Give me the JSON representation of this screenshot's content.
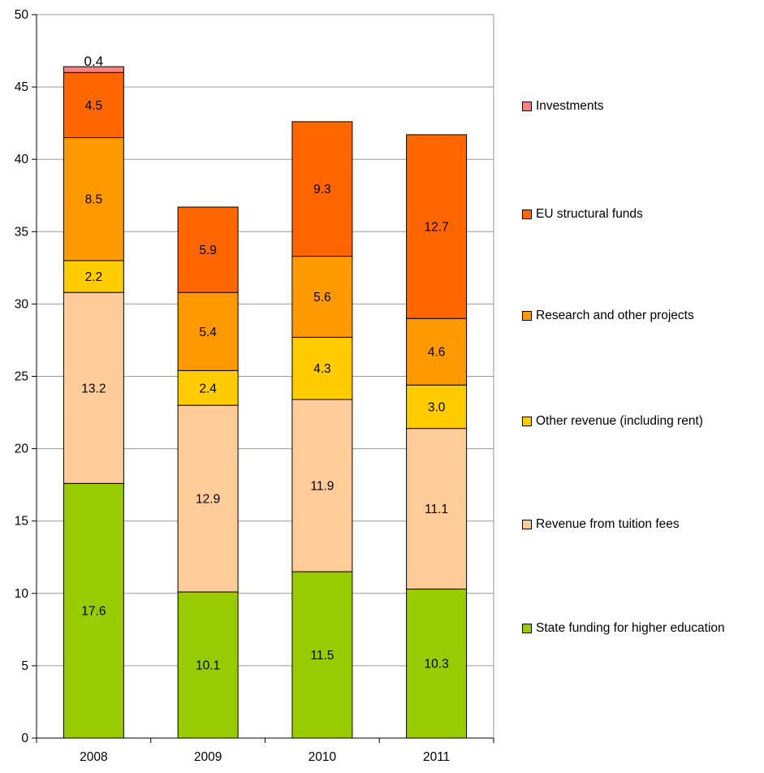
{
  "chart_data": {
    "type": "bar",
    "stacked": true,
    "categories": [
      "2008",
      "2009",
      "2010",
      "2011"
    ],
    "series": [
      {
        "name": "State funding for higher education",
        "color": "#99CC00",
        "values": [
          17.6,
          10.1,
          11.5,
          10.3
        ],
        "labels": [
          "17.6",
          "10.1",
          "11.5",
          "10.3"
        ]
      },
      {
        "name": "Revenue from tuition fees",
        "color": "#FFCC99",
        "values": [
          13.2,
          12.9,
          11.9,
          11.1
        ],
        "labels": [
          "13.2",
          "12.9",
          "11.9",
          "11.1"
        ]
      },
      {
        "name": "Other revenue (including rent)",
        "color": "#FFCC00",
        "values": [
          2.2,
          2.4,
          4.3,
          3.0
        ],
        "labels": [
          "2.2",
          "2.4",
          "4.3",
          "3.0"
        ]
      },
      {
        "name": "Research and other projects",
        "color": "#FF9900",
        "values": [
          8.5,
          5.4,
          5.6,
          4.6
        ],
        "labels": [
          "8.5",
          "5.4",
          "5.6",
          "4.6"
        ]
      },
      {
        "name": "EU structural funds",
        "color": "#FF6600",
        "values": [
          4.5,
          5.9,
          9.3,
          12.7
        ],
        "labels": [
          "4.5",
          "5.9",
          "9.3",
          "12.7"
        ]
      },
      {
        "name": "Investments",
        "color": "#FF8080",
        "values": [
          0.4,
          0,
          0,
          0
        ],
        "labels": [
          "0.4",
          "",
          "",
          ""
        ]
      }
    ],
    "ylim": [
      0,
      50
    ],
    "yticks": [
      0,
      5,
      10,
      15,
      20,
      25,
      30,
      35,
      40,
      45,
      50
    ],
    "grid": true,
    "legend_position": "right",
    "title": "",
    "xlabel": "",
    "ylabel": ""
  }
}
